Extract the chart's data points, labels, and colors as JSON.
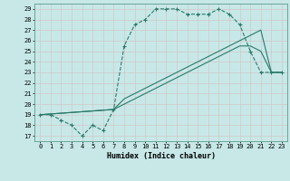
{
  "xlabel": "Humidex (Indice chaleur)",
  "bg_color": "#c8e8e8",
  "grid_color": "#b0d0d0",
  "line_color": "#2a7a6a",
  "xlim": [
    -0.5,
    23.5
  ],
  "ylim": [
    16.5,
    29.5
  ],
  "yticks": [
    17,
    18,
    19,
    20,
    21,
    22,
    23,
    24,
    25,
    26,
    27,
    28,
    29
  ],
  "xticks": [
    0,
    1,
    2,
    3,
    4,
    5,
    6,
    7,
    8,
    9,
    10,
    11,
    12,
    13,
    14,
    15,
    16,
    17,
    18,
    19,
    20,
    21,
    22,
    23
  ],
  "series1_x": [
    0,
    1,
    2,
    3,
    4,
    5,
    6,
    7,
    8,
    9,
    10,
    11,
    12,
    13,
    14,
    15,
    16,
    17,
    18,
    19,
    20,
    21,
    22,
    23
  ],
  "series1_y": [
    19.0,
    19.0,
    18.5,
    18.0,
    17.0,
    18.0,
    17.5,
    19.5,
    25.5,
    27.5,
    28.0,
    29.0,
    29.0,
    29.0,
    28.5,
    28.5,
    28.5,
    29.0,
    28.5,
    27.5,
    25.0,
    23.0,
    23.0,
    23.0
  ],
  "series2_x": [
    0,
    7,
    8,
    9,
    10,
    11,
    12,
    13,
    14,
    15,
    16,
    17,
    18,
    19,
    20,
    21,
    22,
    23
  ],
  "series2_y": [
    19.0,
    19.5,
    20.5,
    21.0,
    21.5,
    22.0,
    22.5,
    23.0,
    23.5,
    24.0,
    24.5,
    25.0,
    25.5,
    26.0,
    26.5,
    27.0,
    23.0,
    23.0
  ],
  "series3_x": [
    0,
    7,
    8,
    9,
    10,
    11,
    12,
    13,
    14,
    15,
    16,
    17,
    18,
    19,
    20,
    21,
    22,
    23
  ],
  "series3_y": [
    19.0,
    19.5,
    20.0,
    20.5,
    21.0,
    21.5,
    22.0,
    22.5,
    23.0,
    23.5,
    24.0,
    24.5,
    25.0,
    25.5,
    25.5,
    25.0,
    23.0,
    23.0
  ]
}
